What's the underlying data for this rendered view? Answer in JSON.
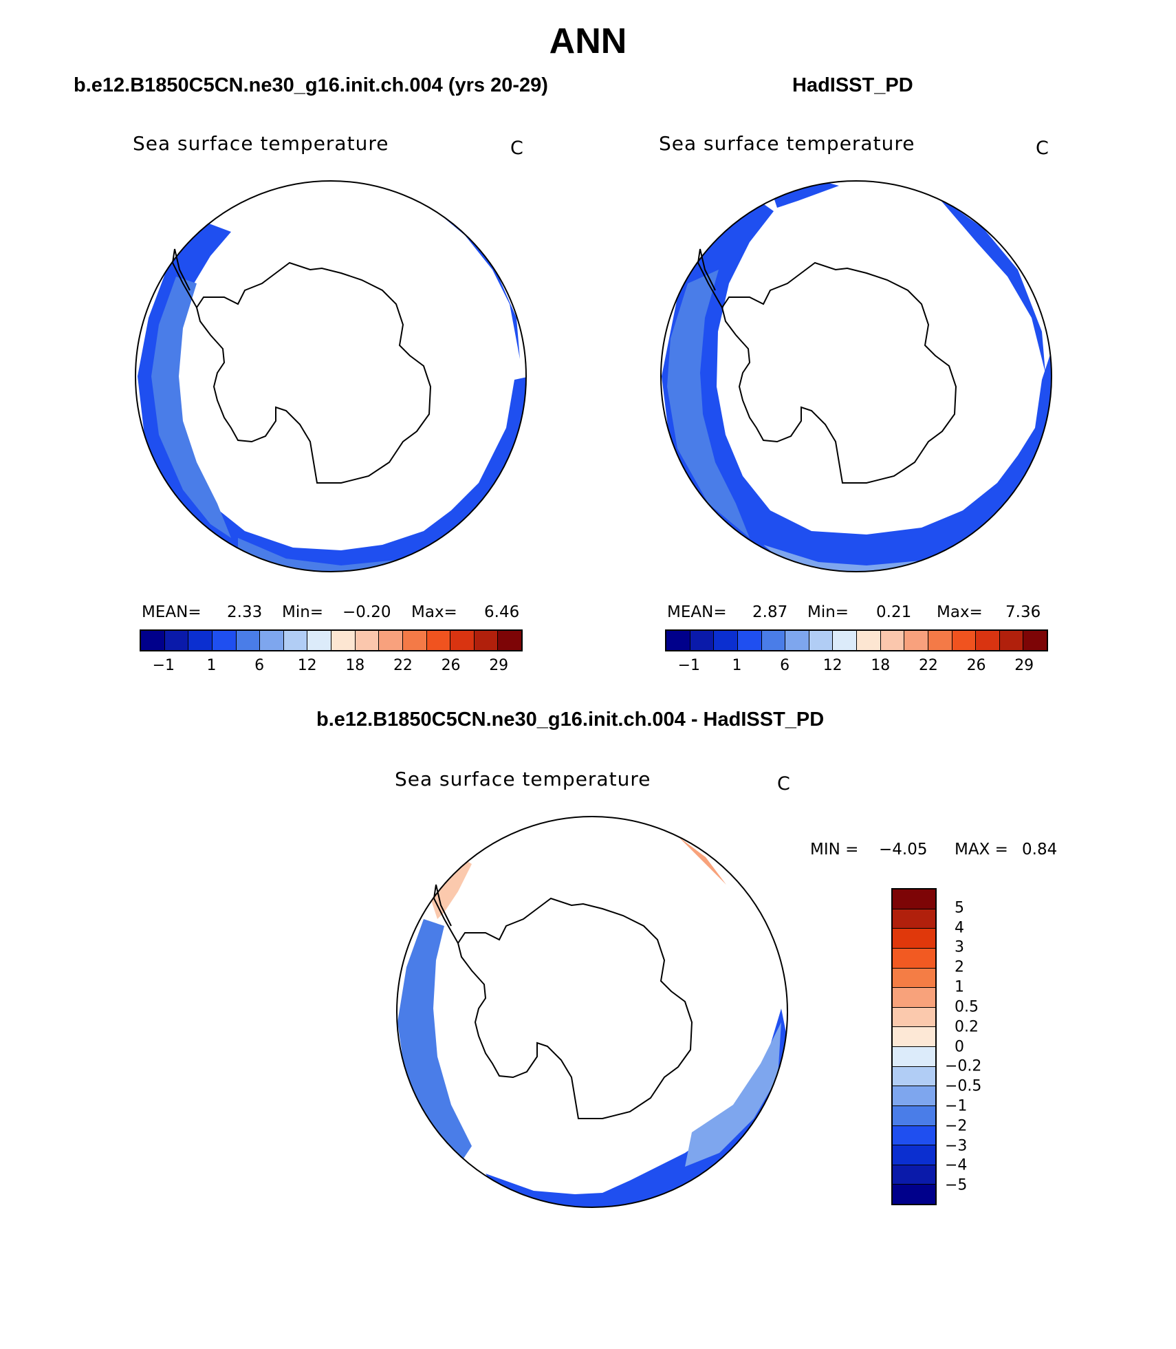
{
  "title": "ANN",
  "panels": [
    {
      "id": "model",
      "title": "b.e12.B1850C5CN.ne30_g16.init.ch.004 (yrs 20-29)",
      "variable": "Sea surface temperature",
      "units": "C",
      "stats": {
        "mean_label": "MEAN=",
        "mean": "2.33",
        "min_label": "Min=",
        "min": "−0.20",
        "max_label": "Max=",
        "max": "6.46"
      }
    },
    {
      "id": "obs",
      "title": "HadISST_PD",
      "variable": "Sea surface temperature",
      "units": "C",
      "stats": {
        "mean_label": "MEAN=",
        "mean": "2.87",
        "min_label": "Min=",
        "min": "0.21",
        "max_label": "Max=",
        "max": "7.36"
      }
    },
    {
      "id": "diff",
      "title": "b.e12.B1850C5CN.ne30_g16.init.ch.004 - HadISST_PD",
      "variable": "Sea surface temperature",
      "units": "C",
      "stats": {
        "min_label": "MIN =",
        "min": "−4.05",
        "max_label": "MAX =",
        "max": "0.84"
      }
    }
  ],
  "abs_colorbar": {
    "colors": [
      "#00008b",
      "#0a1aaa",
      "#0b2fd0",
      "#1f4ff0",
      "#4a7de8",
      "#7ea6ee",
      "#b1cdf5",
      "#dcebfa",
      "#fde6d2",
      "#fbc7ad",
      "#f8a17d",
      "#f47a47",
      "#f0531f",
      "#d93411",
      "#b1200c",
      "#7d0506"
    ],
    "ticks": [
      "−1",
      "1",
      "6",
      "12",
      "18",
      "22",
      "26",
      "29"
    ]
  },
  "diff_colorbar": {
    "colors": [
      "#7d0506",
      "#b1200c",
      "#e0380b",
      "#f25a22",
      "#f47d45",
      "#f8a27b",
      "#fbc9ad",
      "#fde8d6",
      "#dcebfa",
      "#b1cdf5",
      "#7ea6ee",
      "#4a7de8",
      "#1f4ff0",
      "#0b2fd0",
      "#0a1aaa",
      "#00008b"
    ],
    "ticks": [
      "5",
      "4",
      "3",
      "2",
      "1",
      "0.5",
      "0.2",
      "0",
      "−0.2",
      "−0.5",
      "−1",
      "−2",
      "−3",
      "−4",
      "−5"
    ]
  }
}
